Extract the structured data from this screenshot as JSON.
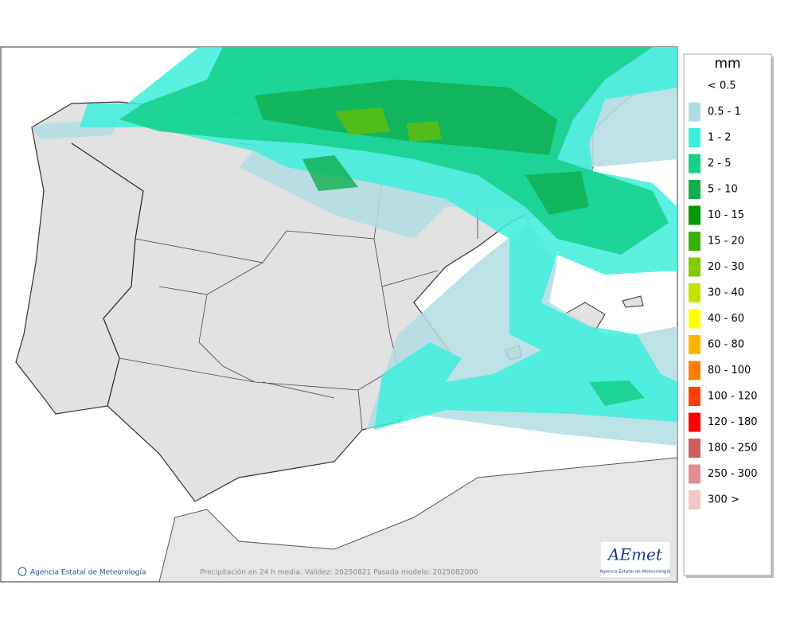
{
  "legend": {
    "title": "mm",
    "items": [
      {
        "label": "< 0.5"
      },
      {
        "label": "0.5 - 1",
        "color": "#b0dde4"
      },
      {
        "label": "1 - 2",
        "color": "#3eeedc"
      },
      {
        "label": "2 - 5",
        "color": "#14cf8a"
      },
      {
        "label": "5 - 10",
        "color": "#0fae4f"
      },
      {
        "label": "10 - 15",
        "color": "#009a00"
      },
      {
        "label": "15 - 20",
        "color": "#3cb000"
      },
      {
        "label": "20 - 30",
        "color": "#80cc00"
      },
      {
        "label": "30 - 40",
        "color": "#c4e400"
      },
      {
        "label": "40 - 60",
        "color": "#ffff00"
      },
      {
        "label": "60 - 80",
        "color": "#ffb400"
      },
      {
        "label": "80 - 100",
        "color": "#ff7f00"
      },
      {
        "label": "100 - 120",
        "color": "#ff4000"
      },
      {
        "label": "120 - 180",
        "color": "#ff0000"
      },
      {
        "label": "180 - 250",
        "color": "#cd5c5c"
      },
      {
        "label": "250 - 300",
        "color": "#e09090"
      },
      {
        "label": "300 >",
        "color": "#f0c8c8"
      }
    ]
  },
  "footer": {
    "credit": "Agencia Estatal de Meteorología",
    "caption": "Precipitación en 24 h media. Validez: 20250821 Pasada modelo: 2025082000"
  },
  "logo": {
    "name": "AEmet",
    "subtitle": "Agencia Estatal de Meteorología"
  }
}
